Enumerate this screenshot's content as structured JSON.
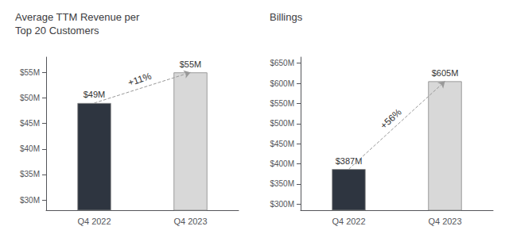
{
  "chart_data": [
    {
      "type": "bar",
      "title": "Average TTM Revenue per\nTop 20 Customers",
      "categories": [
        "Q4 2022",
        "Q4 2023"
      ],
      "values": [
        49,
        55
      ],
      "value_labels": [
        "$49M",
        "$55M"
      ],
      "data_labels": true,
      "colors": [
        "#2e3540",
        "#d8d8d8"
      ],
      "annotations": [
        "+11%"
      ],
      "ylim": [
        28,
        58
      ],
      "yticks": [
        {
          "value": 30,
          "label": "$30M"
        },
        {
          "value": 35,
          "label": "$35M"
        },
        {
          "value": 40,
          "label": "$40M"
        },
        {
          "value": 45,
          "label": "$45M"
        },
        {
          "value": 50,
          "label": "$50M"
        },
        {
          "value": 55,
          "label": "$55M"
        }
      ],
      "grid": false
    },
    {
      "type": "bar",
      "title": "Billings",
      "categories": [
        "Q4 2022",
        "Q4 2023"
      ],
      "values": [
        387,
        605
      ],
      "value_labels": [
        "$387M",
        "$605M"
      ],
      "data_labels": true,
      "colors": [
        "#2e3540",
        "#d8d8d8"
      ],
      "annotations": [
        "+56%"
      ],
      "ylim": [
        285,
        665
      ],
      "yticks": [
        {
          "value": 300,
          "label": "$300M"
        },
        {
          "value": 350,
          "label": "$350M"
        },
        {
          "value": 400,
          "label": "$400M"
        },
        {
          "value": 450,
          "label": "$450M"
        },
        {
          "value": 500,
          "label": "$500M"
        },
        {
          "value": 550,
          "label": "$550M"
        },
        {
          "value": 600,
          "label": "$600M"
        },
        {
          "value": 650,
          "label": "$650M"
        }
      ],
      "grid": false
    }
  ]
}
